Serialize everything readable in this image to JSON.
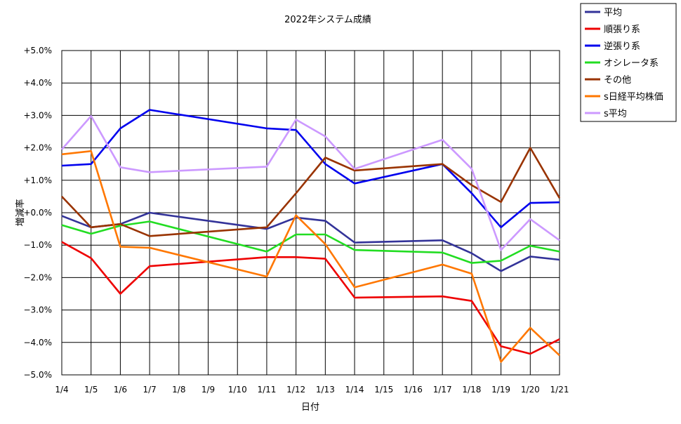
{
  "chart_data": {
    "type": "line",
    "title": "2022年システム成績",
    "xlabel": "日付",
    "ylabel": "増減率",
    "categories": [
      "1/4",
      "1/5",
      "1/6",
      "1/7",
      "1/8",
      "1/9",
      "1/10",
      "1/11",
      "1/12",
      "1/13",
      "1/14",
      "1/15",
      "1/16",
      "1/17",
      "1/18",
      "1/19",
      "1/20",
      "1/21"
    ],
    "x_positions": [
      0,
      1,
      2,
      3,
      4,
      5,
      6,
      7,
      8,
      9,
      10,
      11,
      12,
      13,
      14,
      15,
      16,
      17
    ],
    "ylim": [
      -5.0,
      5.0
    ],
    "yticks": [
      5,
      4,
      3,
      2,
      1,
      0,
      -1,
      -2,
      -3,
      -4,
      -5
    ],
    "ytick_labels": [
      "+5.0%",
      "+4.0%",
      "+3.0%",
      "+2.0%",
      "+1.0%",
      "+0.0%",
      "−1.0%",
      "−2.0%",
      "−3.0%",
      "−4.0%",
      "−5.0%"
    ],
    "grid": true,
    "legend_position": "top-right outside",
    "series": [
      {
        "name": "平均",
        "color": "#333399",
        "points": [
          [
            0,
            -0.1
          ],
          [
            1,
            -0.45
          ],
          [
            2,
            -0.35
          ],
          [
            3,
            0.0
          ],
          [
            7,
            -0.5
          ],
          [
            8,
            -0.15
          ],
          [
            9,
            -0.25
          ],
          [
            10,
            -0.92
          ],
          [
            13,
            -0.85
          ],
          [
            14,
            -1.25
          ],
          [
            15,
            -1.8
          ],
          [
            16,
            -1.35
          ],
          [
            17,
            -1.45
          ]
        ]
      },
      {
        "name": "順張り系",
        "color": "#ee0000",
        "points": [
          [
            0,
            -0.9
          ],
          [
            1,
            -1.4
          ],
          [
            2,
            -2.5
          ],
          [
            3,
            -1.65
          ],
          [
            7,
            -1.37
          ],
          [
            8,
            -1.37
          ],
          [
            9,
            -1.42
          ],
          [
            10,
            -2.62
          ],
          [
            13,
            -2.58
          ],
          [
            14,
            -2.72
          ],
          [
            15,
            -4.12
          ],
          [
            16,
            -4.35
          ],
          [
            17,
            -3.9
          ]
        ]
      },
      {
        "name": "逆張り系",
        "color": "#0000ee",
        "points": [
          [
            0,
            1.45
          ],
          [
            1,
            1.5
          ],
          [
            2,
            2.6
          ],
          [
            3,
            3.17
          ],
          [
            7,
            2.6
          ],
          [
            8,
            2.55
          ],
          [
            9,
            1.5
          ],
          [
            10,
            0.9
          ],
          [
            13,
            1.5
          ],
          [
            14,
            0.6
          ],
          [
            15,
            -0.45
          ],
          [
            16,
            0.3
          ],
          [
            17,
            0.32
          ]
        ]
      },
      {
        "name": "オシレータ系",
        "color": "#22dd22",
        "points": [
          [
            0,
            -0.38
          ],
          [
            1,
            -0.65
          ],
          [
            2,
            -0.4
          ],
          [
            3,
            -0.27
          ],
          [
            7,
            -1.2
          ],
          [
            8,
            -0.67
          ],
          [
            9,
            -0.67
          ],
          [
            10,
            -1.15
          ],
          [
            13,
            -1.23
          ],
          [
            14,
            -1.55
          ],
          [
            15,
            -1.48
          ],
          [
            16,
            -1.02
          ],
          [
            17,
            -1.2
          ]
        ]
      },
      {
        "name": "その他",
        "color": "#993300",
        "points": [
          [
            0,
            0.5
          ],
          [
            1,
            -0.45
          ],
          [
            2,
            -0.35
          ],
          [
            3,
            -0.72
          ],
          [
            7,
            -0.45
          ],
          [
            8,
            0.6
          ],
          [
            9,
            1.7
          ],
          [
            10,
            1.3
          ],
          [
            13,
            1.5
          ],
          [
            14,
            0.85
          ],
          [
            15,
            0.33
          ],
          [
            16,
            2.0
          ],
          [
            17,
            0.45
          ]
        ]
      },
      {
        "name": "s日経平均株価",
        "color": "#ff7700",
        "points": [
          [
            0,
            1.8
          ],
          [
            1,
            1.9
          ],
          [
            2,
            -1.05
          ],
          [
            3,
            -1.08
          ],
          [
            7,
            -1.97
          ],
          [
            8,
            -0.08
          ],
          [
            9,
            -0.97
          ],
          [
            10,
            -2.3
          ],
          [
            13,
            -1.6
          ],
          [
            14,
            -1.88
          ],
          [
            15,
            -4.6
          ],
          [
            16,
            -3.55
          ],
          [
            17,
            -4.4
          ]
        ]
      },
      {
        "name": "s平均",
        "color": "#cc99ff",
        "points": [
          [
            0,
            1.95
          ],
          [
            1,
            2.98
          ],
          [
            2,
            1.4
          ],
          [
            3,
            1.25
          ],
          [
            7,
            1.42
          ],
          [
            8,
            2.87
          ],
          [
            9,
            2.35
          ],
          [
            10,
            1.35
          ],
          [
            13,
            2.25
          ],
          [
            14,
            1.35
          ],
          [
            15,
            -1.15
          ],
          [
            16,
            -0.2
          ],
          [
            17,
            -0.85
          ]
        ]
      }
    ]
  }
}
